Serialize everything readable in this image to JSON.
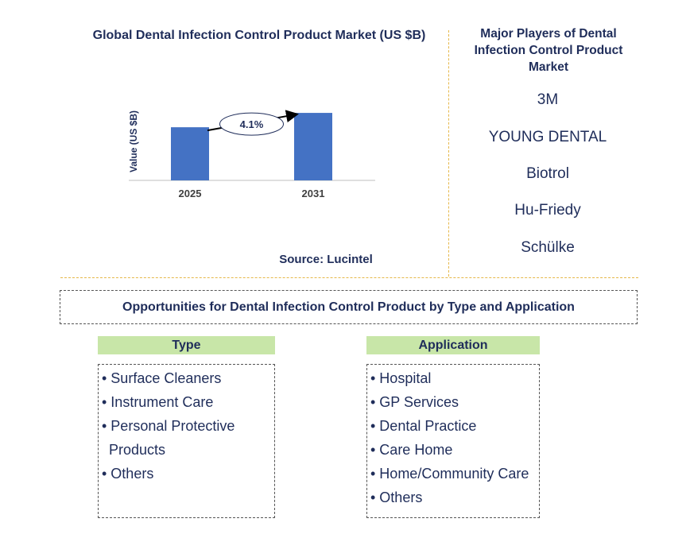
{
  "chart_data": {
    "type": "bar",
    "title": "Global Dental Infection Control Product Market (US $B)",
    "ylabel": "Value (US $B)",
    "categories": [
      "2025",
      "2031"
    ],
    "values": [
      1.0,
      1.27
    ],
    "ylim": [
      0,
      1.6
    ],
    "annotation": "4.1%",
    "bar_color": "#4472c4"
  },
  "source": "Source: Lucintel",
  "players": {
    "title": "Major Players of Dental Infection Control Product Market",
    "items": [
      "3M",
      "YOUNG DENTAL",
      "Biotrol",
      "Hu-Friedy",
      "Schülke"
    ]
  },
  "opportunities": {
    "title": "Opportunities for Dental Infection Control Product by Type and Application",
    "type": {
      "heading": "Type",
      "items": [
        "• Surface Cleaners",
        "• Instrument Care",
        "• Personal Protective",
        "Products",
        "• Others"
      ]
    },
    "application": {
      "heading": "Application",
      "items": [
        "• Hospital",
        "• GP Services",
        "• Dental Practice",
        "• Care Home",
        "• Home/Community Care",
        "• Others"
      ]
    }
  }
}
